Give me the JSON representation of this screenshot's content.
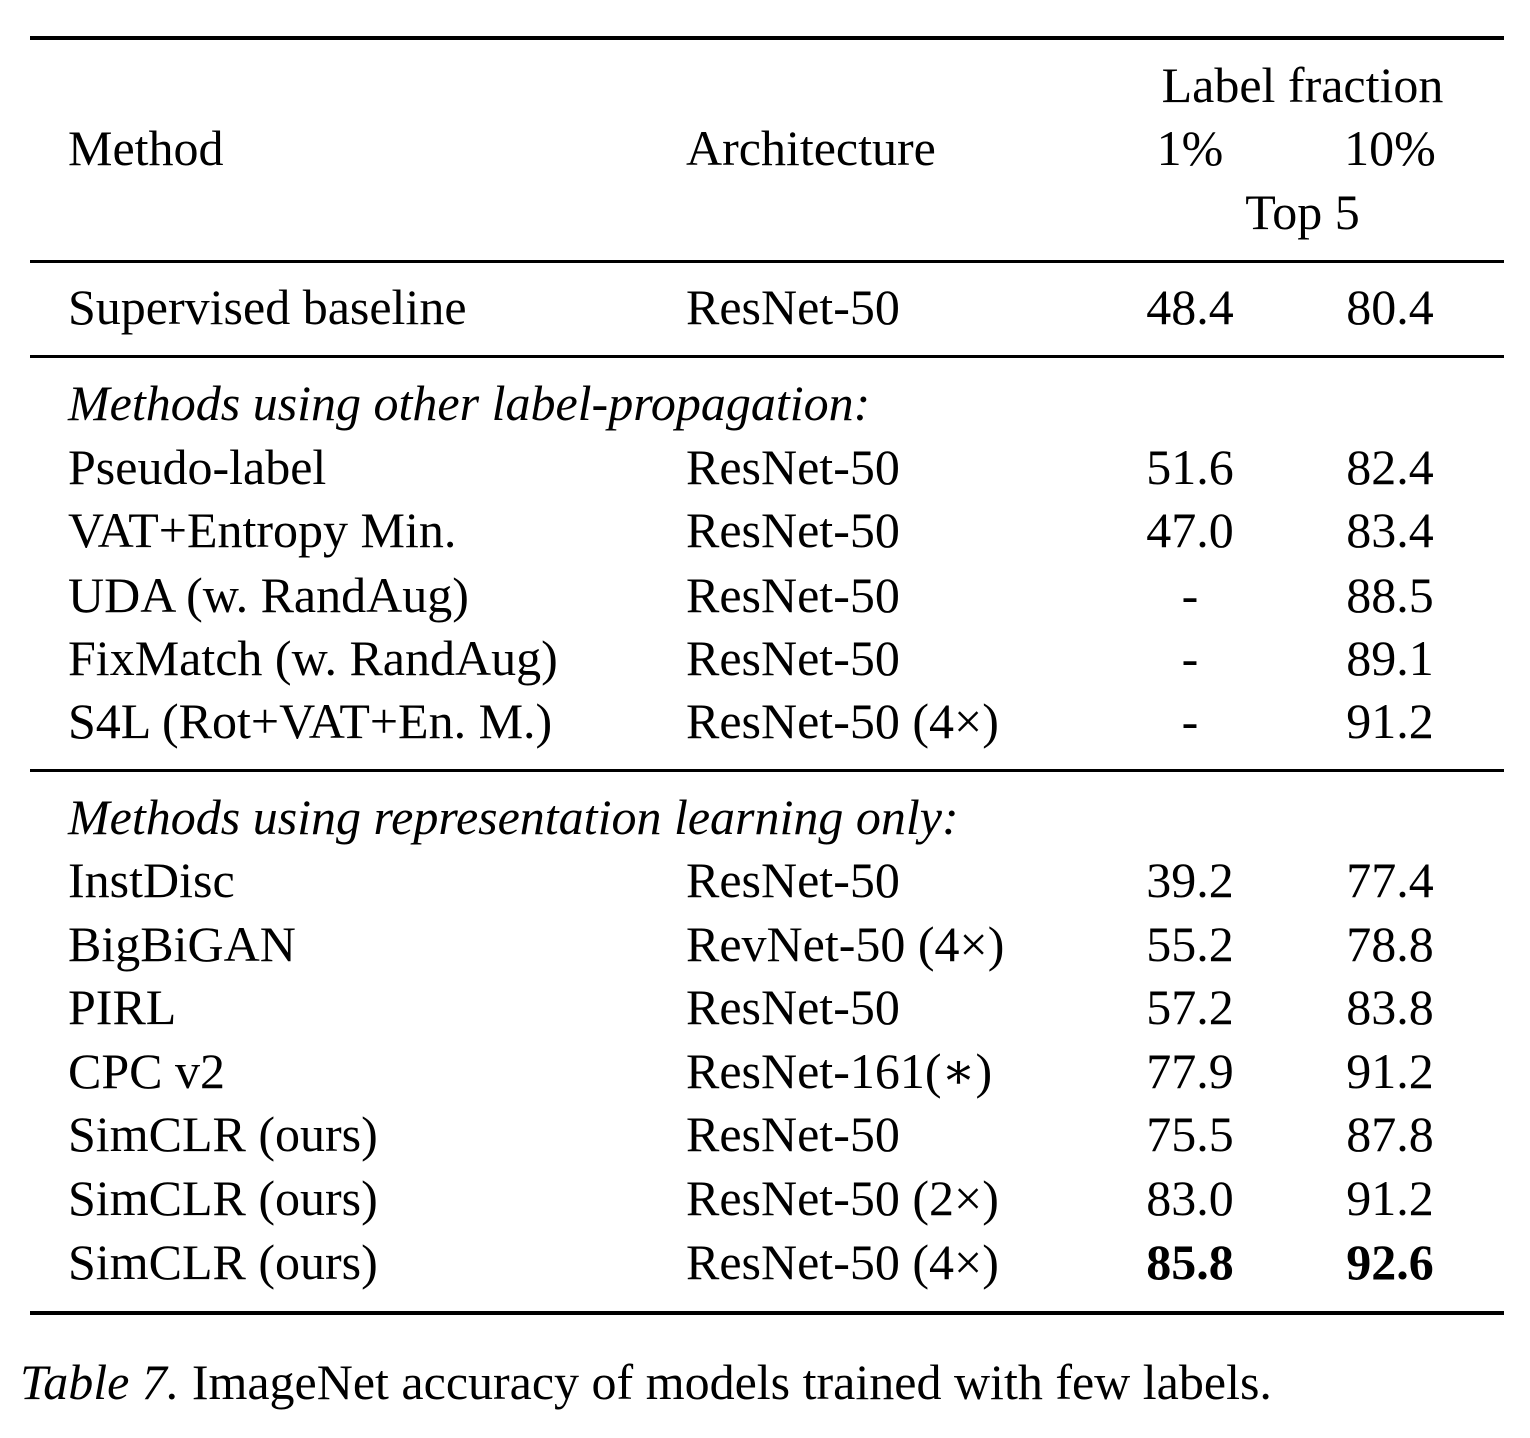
{
  "header": {
    "method": "Method",
    "architecture": "Architecture",
    "label_fraction": "Label fraction",
    "pct1": "1%",
    "pct10": "10%",
    "metric": "Top 5"
  },
  "baseline": {
    "method": "Supervised baseline",
    "arch": "ResNet-50",
    "v1": "48.4",
    "v10": "80.4"
  },
  "group1": {
    "title": "Methods using other label-propagation:",
    "rows": [
      {
        "method": "Pseudo-label",
        "arch": "ResNet-50",
        "v1": "51.6",
        "v10": "82.4"
      },
      {
        "method": "VAT+Entropy Min.",
        "arch": "ResNet-50",
        "v1": "47.0",
        "v10": "83.4"
      },
      {
        "method": "UDA (w. RandAug)",
        "arch": "ResNet-50",
        "v1": "-",
        "v10": "88.5"
      },
      {
        "method": "FixMatch (w. RandAug)",
        "arch": "ResNet-50",
        "v1": "-",
        "v10": "89.1"
      },
      {
        "method": "S4L (Rot+VAT+En. M.)",
        "arch": "ResNet-50 (4×)",
        "v1": "-",
        "v10": "91.2"
      }
    ]
  },
  "group2": {
    "title": "Methods using representation learning only:",
    "rows": [
      {
        "method": "InstDisc",
        "arch": "ResNet-50",
        "v1": "39.2",
        "v10": "77.4"
      },
      {
        "method": "BigBiGAN",
        "arch": "RevNet-50 (4×)",
        "v1": "55.2",
        "v10": "78.8"
      },
      {
        "method": "PIRL",
        "arch": "ResNet-50",
        "v1": "57.2",
        "v10": "83.8"
      },
      {
        "method": "CPC v2",
        "arch": "ResNet-161(∗)",
        "v1": "77.9",
        "v10": "91.2"
      },
      {
        "method": "SimCLR (ours)",
        "arch": "ResNet-50",
        "v1": "75.5",
        "v10": "87.8"
      },
      {
        "method": "SimCLR (ours)",
        "arch": "ResNet-50 (2×)",
        "v1": "83.0",
        "v10": "91.2"
      },
      {
        "method": "SimCLR (ours)",
        "arch": "ResNet-50 (4×)",
        "v1": "85.8",
        "v10": "92.6"
      }
    ]
  },
  "caption": {
    "label": "Table 7.",
    "text": "ImageNet accuracy of models trained with few labels."
  }
}
